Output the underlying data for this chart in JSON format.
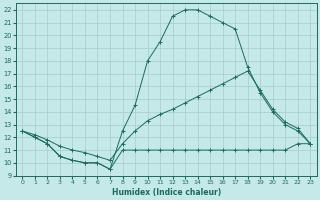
{
  "xlabel": "Humidex (Indice chaleur)",
  "xlim": [
    -0.5,
    23.5
  ],
  "ylim": [
    9,
    22.5
  ],
  "yticks": [
    9,
    10,
    11,
    12,
    13,
    14,
    15,
    16,
    17,
    18,
    19,
    20,
    21,
    22
  ],
  "xticks": [
    0,
    1,
    2,
    3,
    4,
    5,
    6,
    7,
    8,
    9,
    10,
    11,
    12,
    13,
    14,
    15,
    16,
    17,
    18,
    19,
    20,
    21,
    22,
    23
  ],
  "bg_color": "#c5e8e8",
  "grid_color": "#a8cccc",
  "line_color": "#1a6b60",
  "c1_x": [
    0,
    1,
    2,
    3,
    4,
    5,
    6,
    7,
    8,
    9,
    10,
    11,
    12,
    13,
    14,
    15,
    16,
    17,
    18,
    19,
    20,
    21,
    22,
    23
  ],
  "c1_y": [
    12.5,
    12.0,
    11.5,
    10.5,
    10.2,
    10.0,
    10.0,
    9.5,
    11.0,
    11.0,
    11.0,
    11.0,
    11.0,
    11.0,
    11.0,
    11.0,
    11.0,
    11.0,
    11.0,
    11.0,
    11.0,
    11.0,
    11.5,
    11.5
  ],
  "c2_x": [
    0,
    1,
    2,
    3,
    4,
    5,
    6,
    7,
    8,
    9,
    10,
    11,
    12,
    13,
    14,
    15,
    16,
    17,
    18,
    19,
    20,
    21,
    22,
    23
  ],
  "c2_y": [
    12.5,
    12.2,
    11.8,
    11.3,
    11.0,
    10.8,
    10.5,
    10.2,
    11.5,
    12.5,
    13.3,
    13.8,
    14.2,
    14.7,
    15.2,
    15.7,
    16.2,
    16.7,
    17.2,
    15.7,
    14.2,
    13.2,
    12.7,
    11.5
  ],
  "c3_x": [
    0,
    1,
    2,
    3,
    4,
    5,
    6,
    7,
    8,
    9,
    10,
    11,
    12,
    13,
    14,
    15,
    16,
    17,
    18,
    19,
    20,
    21,
    22,
    23
  ],
  "c3_y": [
    12.5,
    12.0,
    11.5,
    10.5,
    10.2,
    10.0,
    10.0,
    9.5,
    12.5,
    14.5,
    18.0,
    19.5,
    21.5,
    22.0,
    22.0,
    21.5,
    21.0,
    20.5,
    17.5,
    15.5,
    14.0,
    13.0,
    12.5,
    11.5
  ]
}
